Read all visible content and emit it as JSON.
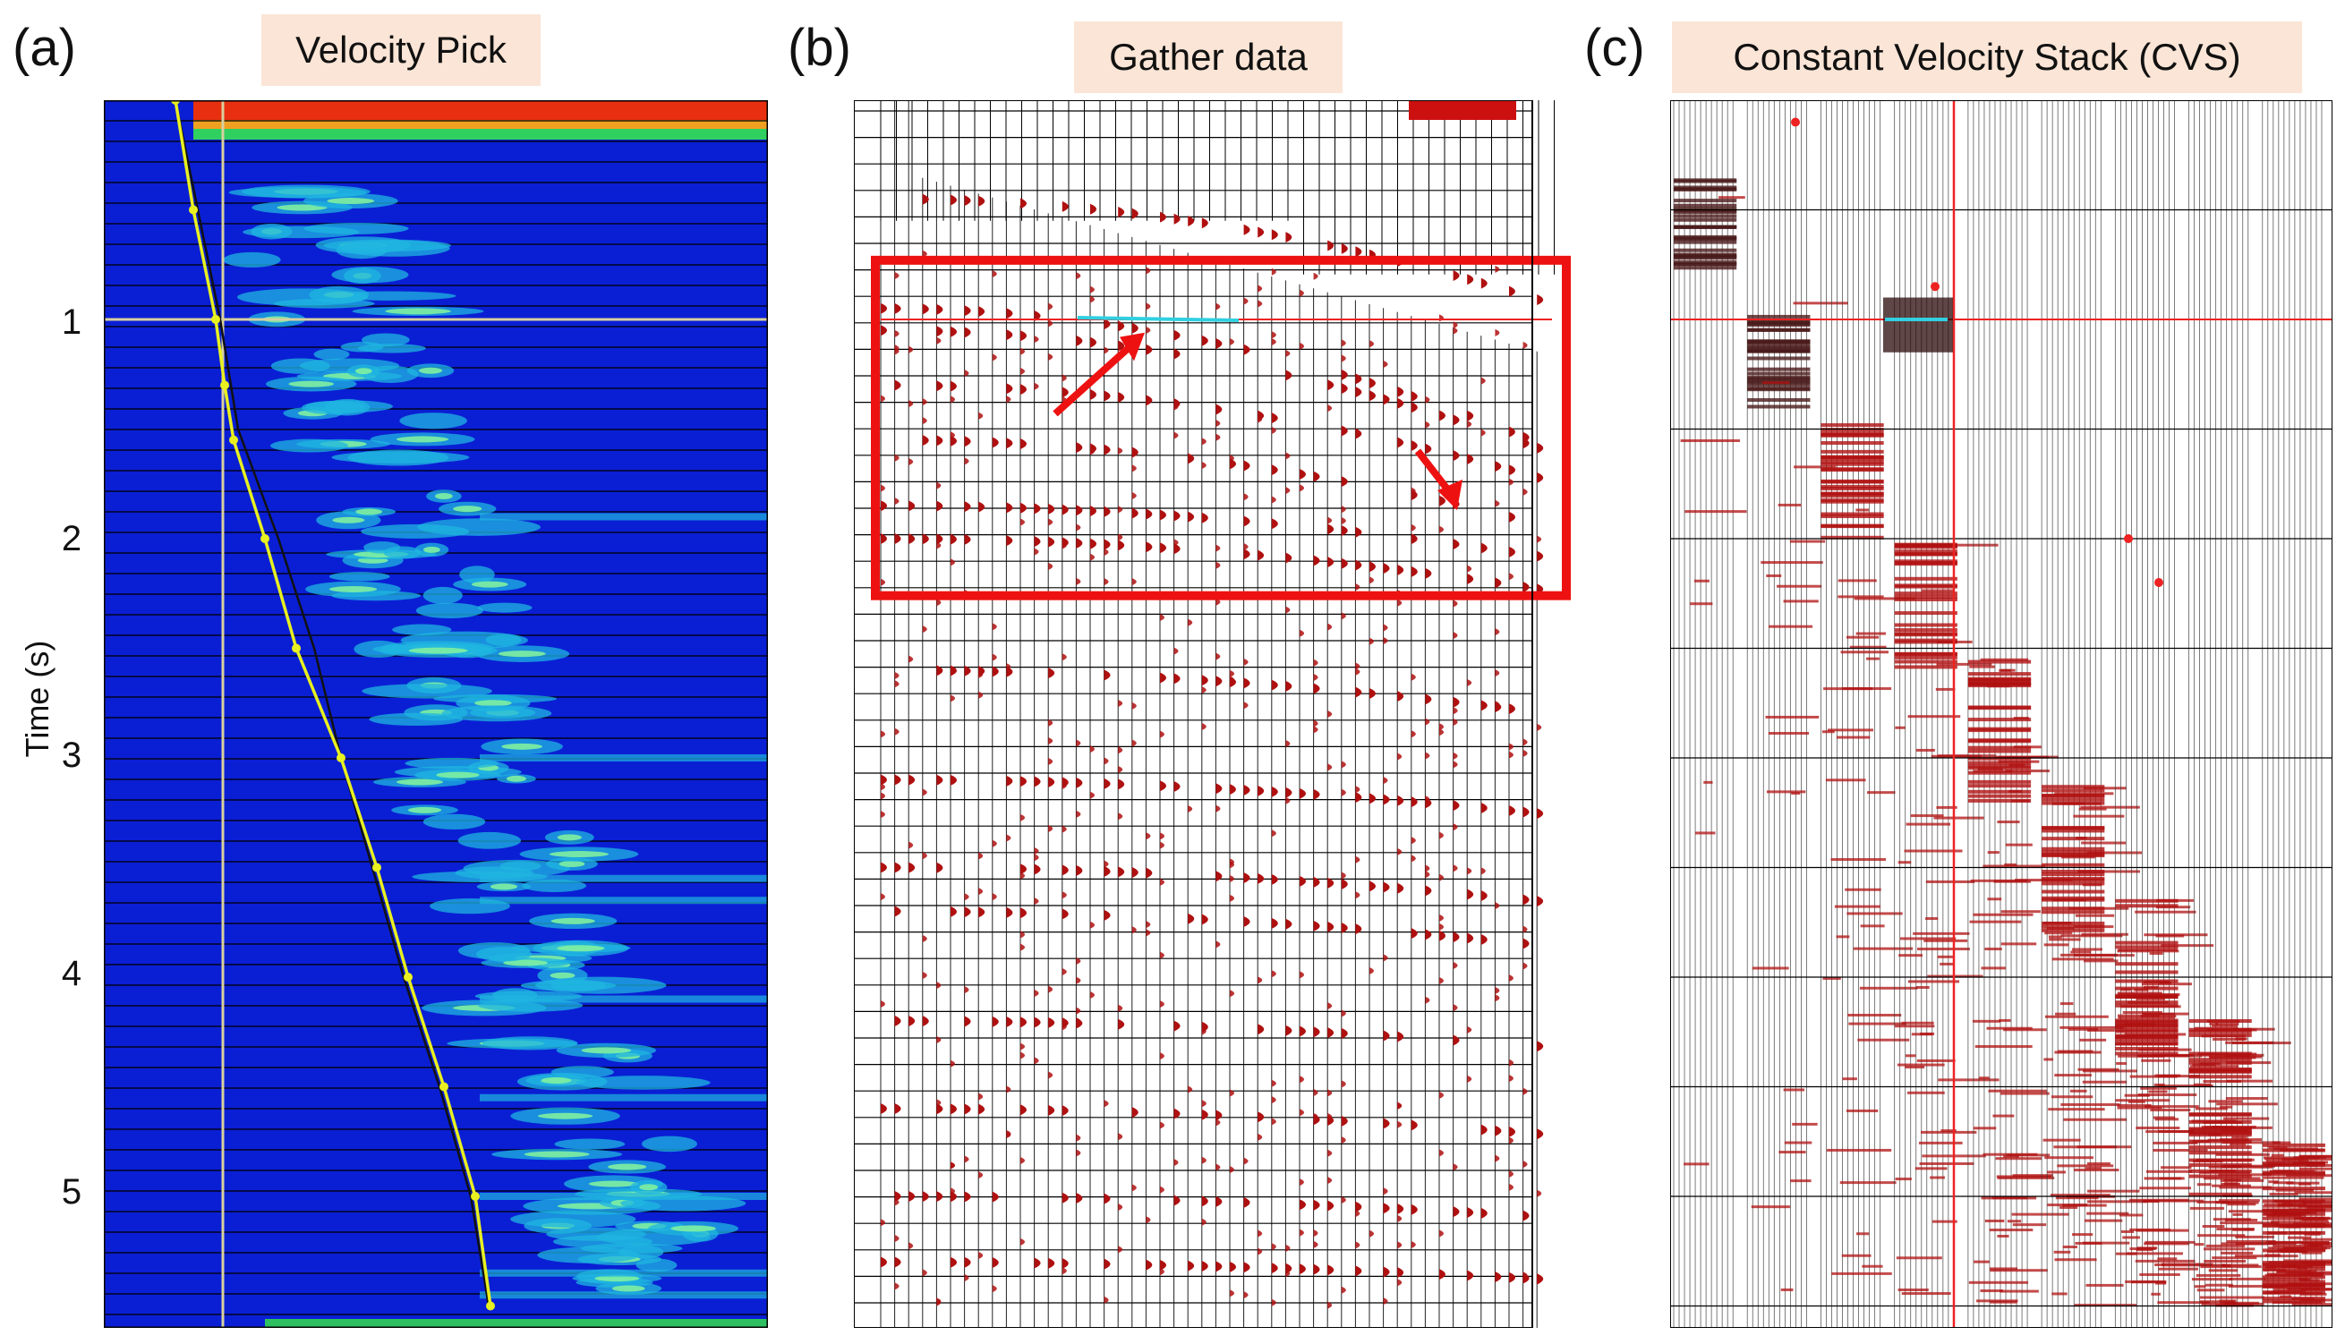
{
  "panels": [
    {
      "label": "(a)",
      "title": "Velocity Pick"
    },
    {
      "label": "(b)",
      "title": "Gather data"
    },
    {
      "label": "(c)",
      "title": "Constant Velocity Stack (CVS)"
    }
  ],
  "y_axis": {
    "label": "Time (s)",
    "ticks": [
      "1",
      "2",
      "3",
      "4",
      "5"
    ],
    "tick_values": [
      1,
      2,
      3,
      4,
      5
    ],
    "range": [
      0,
      5.6
    ]
  },
  "colors": {
    "semblance_bg": "#0a1fd4",
    "pick_line": "#e8f020",
    "wiggle_fill": "#b01010",
    "highlight_box": "#ee1111",
    "cvs_cursor": "#ee2222",
    "title_bg": "#fbe5d6"
  }
}
